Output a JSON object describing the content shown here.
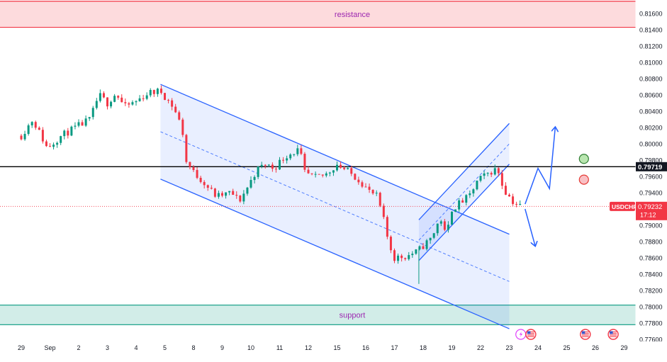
{
  "chart_data": {
    "type": "candlestick",
    "symbol": "USDCHF",
    "price_axis": {
      "min": 0.7755,
      "max": 0.8178,
      "ticks": [
        "0.81600",
        "0.81400",
        "0.81200",
        "0.81000",
        "0.80800",
        "0.80600",
        "0.80400",
        "0.80200",
        "0.80000",
        "0.79800",
        "0.79600",
        "0.79400",
        "0.79000",
        "0.78800",
        "0.78600",
        "0.78400",
        "0.78200",
        "0.78000",
        "0.77800",
        "0.77600"
      ]
    },
    "time_axis": {
      "labels": [
        "29",
        "Sep",
        "2",
        "3",
        "4",
        "5",
        "8",
        "9",
        "10",
        "11",
        "12",
        "15",
        "16",
        "17",
        "18",
        "19",
        "22",
        "23",
        "24",
        "25",
        "26",
        "29"
      ],
      "label_index": [
        0,
        1,
        2,
        3,
        4,
        5,
        6,
        7,
        8,
        9,
        10,
        11,
        12,
        13,
        14,
        15,
        16,
        17,
        18,
        19,
        20,
        21
      ]
    },
    "zones": [
      {
        "label": "resistance",
        "low": 0.8143,
        "high": 0.8175,
        "color": "#f23645"
      },
      {
        "label": "support",
        "low": 0.7778,
        "high": 0.7802,
        "color": "#089981"
      }
    ],
    "horizontal_level": {
      "price": 0.79719,
      "label": "0.79719"
    },
    "last_price": {
      "price": 0.79232,
      "symbol_label": "USDCHF",
      "price_label": "0.79232",
      "countdown": "17:12"
    },
    "anchors": [
      [
        0.0,
        0.801
      ],
      [
        0.4,
        0.803
      ],
      [
        0.9,
        0.7995
      ],
      [
        1.4,
        0.801
      ],
      [
        1.9,
        0.802
      ],
      [
        2.4,
        0.803
      ],
      [
        2.7,
        0.806
      ],
      [
        3.0,
        0.805
      ],
      [
        3.3,
        0.8062
      ],
      [
        3.6,
        0.8045
      ],
      [
        4.0,
        0.8052
      ],
      [
        4.4,
        0.8062
      ],
      [
        4.85,
        0.8065
      ],
      [
        5.3,
        0.8045
      ],
      [
        5.6,
        0.802
      ],
      [
        5.75,
        0.7978
      ],
      [
        6.0,
        0.7965
      ],
      [
        6.3,
        0.7955
      ],
      [
        6.8,
        0.7935
      ],
      [
        7.3,
        0.794
      ],
      [
        7.6,
        0.793
      ],
      [
        7.9,
        0.7948
      ],
      [
        8.2,
        0.7968
      ],
      [
        8.5,
        0.7975
      ],
      [
        8.8,
        0.797
      ],
      [
        9.2,
        0.7985
      ],
      [
        9.5,
        0.799
      ],
      [
        9.7,
        0.7993
      ],
      [
        9.85,
        0.7965
      ],
      [
        10.2,
        0.7958
      ],
      [
        10.6,
        0.7962
      ],
      [
        11.0,
        0.7975
      ],
      [
        11.3,
        0.7968
      ],
      [
        11.8,
        0.7955
      ],
      [
        12.1,
        0.7942
      ],
      [
        12.4,
        0.7935
      ],
      [
        12.6,
        0.791
      ],
      [
        12.8,
        0.7878
      ],
      [
        13.0,
        0.786
      ],
      [
        13.4,
        0.7862
      ],
      [
        13.8,
        0.7868
      ],
      [
        14.1,
        0.7878
      ],
      [
        14.3,
        0.7885
      ],
      [
        14.6,
        0.791
      ],
      [
        14.8,
        0.7885
      ],
      [
        15.0,
        0.792
      ],
      [
        15.3,
        0.7928
      ],
      [
        15.6,
        0.7935
      ],
      [
        15.9,
        0.7955
      ],
      [
        16.2,
        0.7962
      ],
      [
        16.45,
        0.7968
      ],
      [
        16.6,
        0.7968
      ],
      [
        16.8,
        0.7945
      ],
      [
        17.1,
        0.793
      ],
      [
        17.3,
        0.7925
      ],
      [
        17.42,
        0.7923
      ]
    ],
    "channels": [
      {
        "name": "descending channel",
        "upper": [
          [
            4.85,
            0.8073
          ],
          [
            17.0,
            0.7889
          ]
        ],
        "lower": [
          [
            4.85,
            0.79567
          ],
          [
            17.0,
            0.7773
          ]
        ],
        "fill": true
      },
      {
        "name": "ascending channel",
        "upper": [
          [
            13.85,
            0.79067
          ],
          [
            17.0,
            0.8025
          ]
        ],
        "lower": [
          [
            13.85,
            0.78567
          ],
          [
            17.0,
            0.7975
          ]
        ],
        "fill": true
      }
    ],
    "scenario_arrows": [
      {
        "direction": "up",
        "path": [
          [
            17.55,
            0.7926
          ],
          [
            18.0,
            0.797
          ],
          [
            18.4,
            0.7945
          ],
          [
            18.6,
            0.802
          ]
        ]
      },
      {
        "direction": "down",
        "path": [
          [
            17.55,
            0.792
          ],
          [
            17.9,
            0.7875
          ]
        ]
      }
    ],
    "markers": [
      {
        "type": "circle",
        "color": "green",
        "time": 19.6,
        "price": 0.79815
      },
      {
        "type": "circle",
        "color": "red",
        "time": 19.6,
        "price": 0.7956
      }
    ],
    "event_icons": [
      {
        "icon": "lightning-icon",
        "time": 17.4
      },
      {
        "icon": "us-flag-icon",
        "time": 17.75
      },
      {
        "icon": "us-flag-icon",
        "time": 19.65
      },
      {
        "icon": "us-flag-icon",
        "time": 20.62
      }
    ],
    "colors": {
      "up": "#089981",
      "down": "#f23645",
      "channel": "#2962ff",
      "channel_fill": "rgba(41,98,255,0.10)"
    },
    "grid": false
  }
}
